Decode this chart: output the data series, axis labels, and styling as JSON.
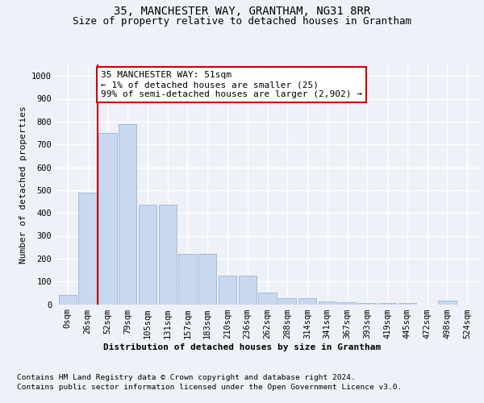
{
  "title": "35, MANCHESTER WAY, GRANTHAM, NG31 8RR",
  "subtitle": "Size of property relative to detached houses in Grantham",
  "xlabel": "Distribution of detached houses by size in Grantham",
  "ylabel": "Number of detached properties",
  "footnote1": "Contains HM Land Registry data © Crown copyright and database right 2024.",
  "footnote2": "Contains public sector information licensed under the Open Government Licence v3.0.",
  "annotation_line1": "35 MANCHESTER WAY: 51sqm",
  "annotation_line2": "← 1% of detached houses are smaller (25)",
  "annotation_line3": "99% of semi-detached houses are larger (2,902) →",
  "bar_color": "#c8d9ef",
  "bar_edge_color": "#9ab4d4",
  "marker_color": "#cc0000",
  "categories": [
    "0sqm",
    "26sqm",
    "52sqm",
    "79sqm",
    "105sqm",
    "131sqm",
    "157sqm",
    "183sqm",
    "210sqm",
    "236sqm",
    "262sqm",
    "288sqm",
    "314sqm",
    "341sqm",
    "367sqm",
    "393sqm",
    "419sqm",
    "445sqm",
    "472sqm",
    "498sqm",
    "524sqm"
  ],
  "values": [
    40,
    490,
    750,
    790,
    435,
    435,
    220,
    220,
    125,
    125,
    50,
    28,
    25,
    12,
    10,
    5,
    5,
    5,
    0,
    15,
    0
  ],
  "ylim": [
    0,
    1050
  ],
  "yticks": [
    0,
    100,
    200,
    300,
    400,
    500,
    600,
    700,
    800,
    900,
    1000
  ],
  "background_color": "#eef2f8",
  "plot_bg_color": "#eef2f8",
  "grid_color": "#ffffff",
  "title_fontsize": 10,
  "subtitle_fontsize": 9,
  "axis_label_fontsize": 8,
  "ylabel_fontsize": 8,
  "tick_fontsize": 7.5,
  "annotation_fontsize": 8,
  "footnote_fontsize": 6.8
}
